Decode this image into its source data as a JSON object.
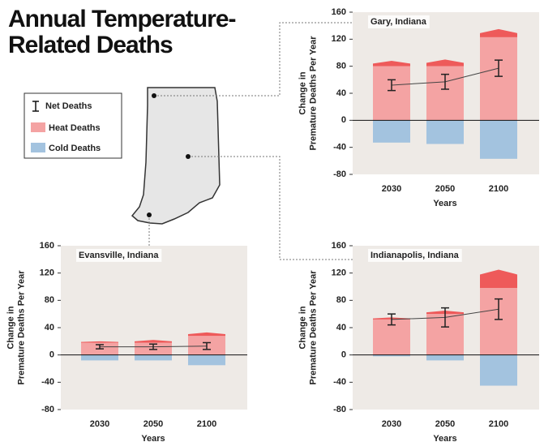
{
  "title": "Annual Temperature-Related Deaths",
  "chart_data": [
    {
      "type": "bar",
      "title": "Gary, Indiana",
      "ylabel": "Change in Premature Deaths Per Year",
      "xlabel": "Years",
      "categories": [
        "2030",
        "2050",
        "2100"
      ],
      "series": [
        {
          "name": "Net Deaths",
          "color": "#222222",
          "values": [
            52,
            57,
            77
          ],
          "errors": [
            8,
            11,
            12
          ]
        },
        {
          "name": "Heat Deaths",
          "color": "#f4a3a3",
          "high_color": "#ee5a5a",
          "values": [
            80,
            80,
            123
          ],
          "high": [
            88,
            90,
            135
          ]
        },
        {
          "name": "Cold Deaths",
          "color": "#a3c3df",
          "values": [
            -33,
            -35,
            -57
          ]
        }
      ],
      "ylim": [
        -80,
        160
      ],
      "yticks": [
        -80,
        -40,
        0,
        40,
        80,
        120,
        160
      ]
    },
    {
      "type": "bar",
      "title": "Evansville, Indiana",
      "ylabel": "Change in Premature Deaths Per Year",
      "xlabel": "Years",
      "categories": [
        "2030",
        "2050",
        "2100"
      ],
      "series": [
        {
          "name": "Net Deaths",
          "color": "#222222",
          "values": [
            12,
            12,
            13
          ],
          "errors": [
            3,
            4,
            5
          ]
        },
        {
          "name": "Heat Deaths",
          "color": "#f4a3a3",
          "high_color": "#ee5a5a",
          "values": [
            18,
            18,
            28
          ],
          "high": [
            20,
            22,
            33
          ]
        },
        {
          "name": "Cold Deaths",
          "color": "#a3c3df",
          "values": [
            -8,
            -8,
            -15
          ]
        }
      ],
      "ylim": [
        -80,
        160
      ],
      "yticks": [
        -80,
        -40,
        0,
        40,
        80,
        120,
        160
      ]
    },
    {
      "type": "bar",
      "title": "Indianapolis, Indiana",
      "ylabel": "Change in Premature Deaths Per Year",
      "xlabel": "Years",
      "categories": [
        "2030",
        "2050",
        "2100"
      ],
      "series": [
        {
          "name": "Net Deaths",
          "color": "#222222",
          "values": [
            52,
            55,
            67
          ],
          "errors": [
            8,
            14,
            15
          ]
        },
        {
          "name": "Heat Deaths",
          "color": "#f4a3a3",
          "high_color": "#ee5a5a",
          "values": [
            52,
            60,
            98
          ],
          "high": [
            55,
            65,
            125
          ]
        },
        {
          "name": "Cold Deaths",
          "color": "#a3c3df",
          "values": [
            -2,
            -8,
            -45
          ]
        }
      ],
      "ylim": [
        -80,
        160
      ],
      "yticks": [
        -80,
        -40,
        0,
        40,
        80,
        120,
        160
      ]
    }
  ]
}
